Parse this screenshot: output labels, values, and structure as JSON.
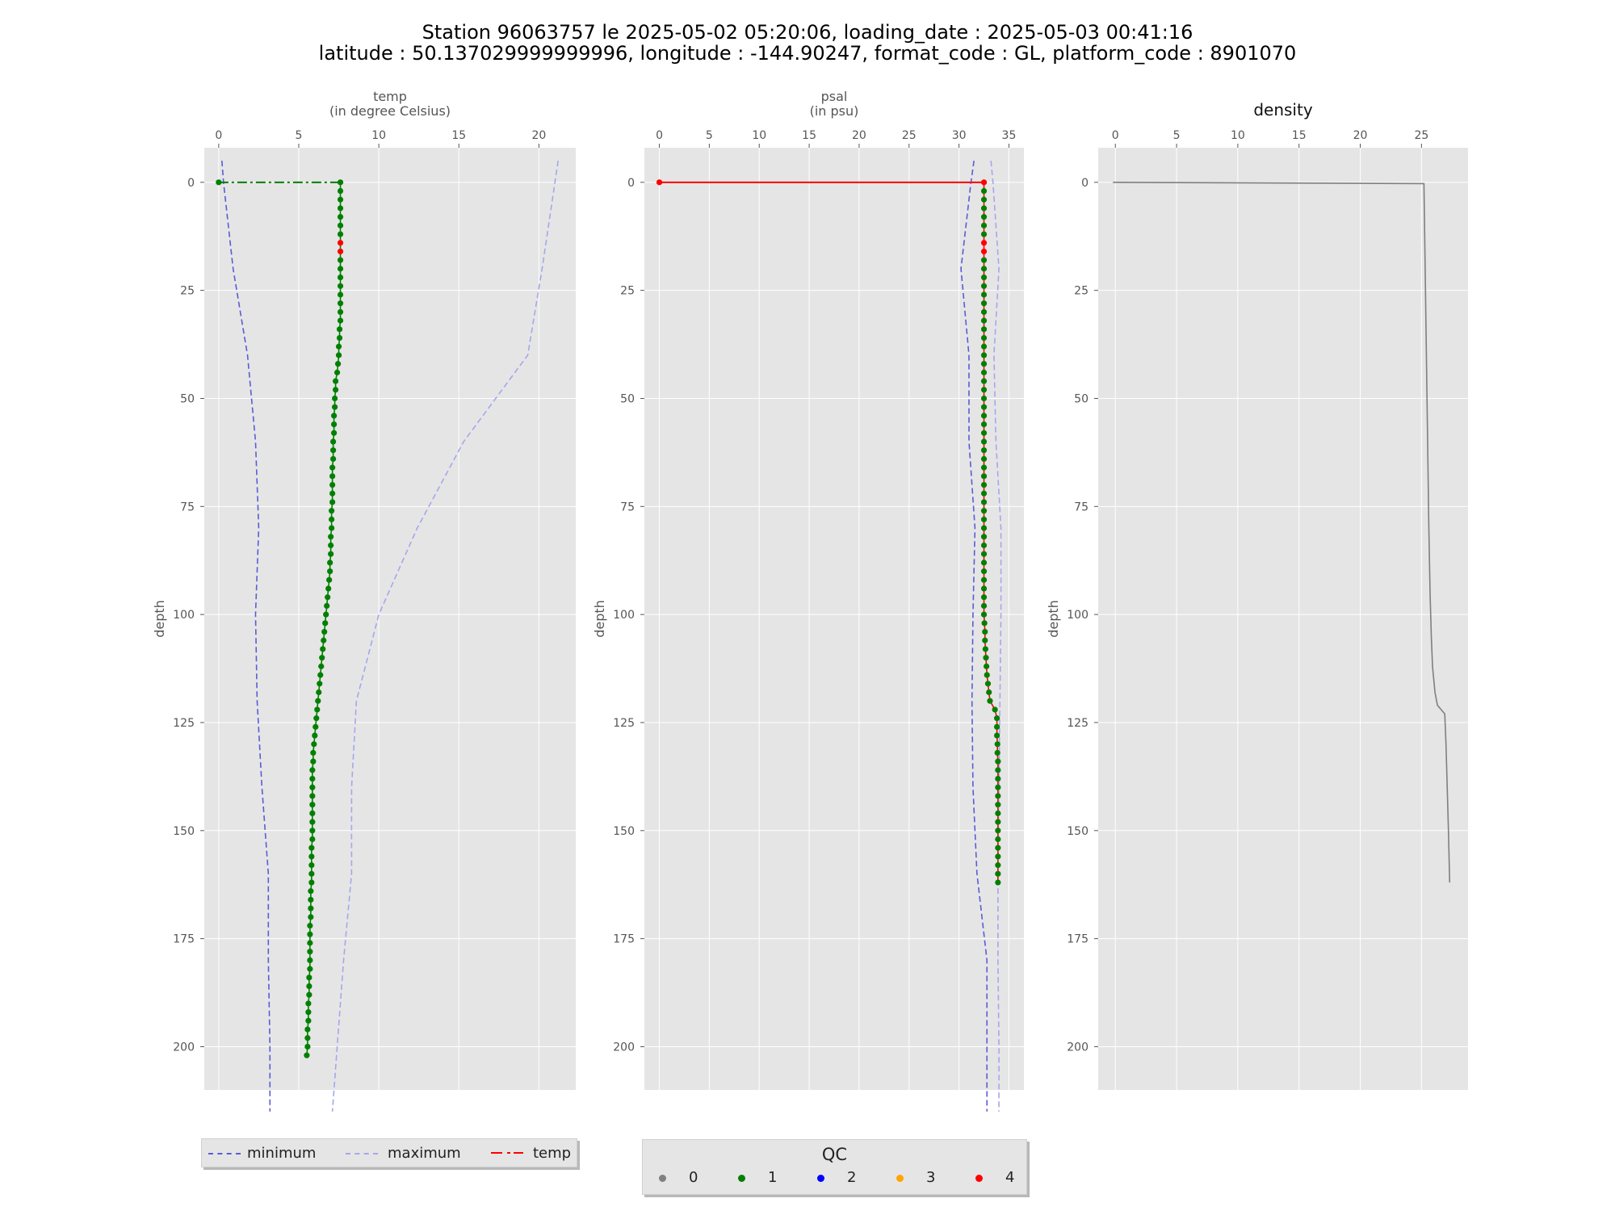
{
  "title": {
    "line1": "Station 96063757 le 2025-05-02 05:20:06, loading_date : 2025-05-03 00:41:16",
    "line2": "latitude : 50.137029999999996, longitude : -144.90247, format_code : GL, platform_code : 8901070"
  },
  "colors": {
    "background": "#e5e5e5",
    "grid": "#ffffff",
    "minimum": "#5b5bd6",
    "maximum": "#a6a6ee",
    "temp_line": "#008000",
    "psal_line": "#ff0000",
    "density_line": "#7f7f7f",
    "qc0": "#808080",
    "qc1": "#008000",
    "qc2": "#0000ff",
    "qc3": "#ffa500",
    "qc4": "#ff0000"
  },
  "legend": {
    "minimum": "minimum",
    "maximum": "maximum",
    "temp": "temp",
    "qc_title": "QC",
    "qc_labels": [
      "0",
      "1",
      "2",
      "3",
      "4"
    ]
  },
  "chart_data": [
    {
      "type": "line",
      "title": "temp\n(in degree Celsius)",
      "xlabel": "temp (in degree Celsius)",
      "ylabel": "depth",
      "xlim": [
        -0.9,
        22.3
      ],
      "ylim": [
        210,
        -8
      ],
      "xticks": [
        0,
        5,
        10,
        15,
        20
      ],
      "yticks": [
        0,
        25,
        50,
        75,
        100,
        125,
        150,
        175,
        200
      ],
      "x_axis_position": "top",
      "y_inverted": true,
      "grid": true,
      "series": [
        {
          "name": "minimum",
          "style": "dashed",
          "depth": [
            -5,
            0,
            20,
            40,
            60,
            80,
            100,
            120,
            140,
            160,
            180,
            200,
            215
          ],
          "x": [
            0.2,
            0.3,
            0.9,
            1.8,
            2.3,
            2.5,
            2.3,
            2.4,
            2.7,
            3.1,
            3.1,
            3.2,
            3.2
          ]
        },
        {
          "name": "maximum",
          "style": "dashed",
          "depth": [
            -5,
            0,
            20,
            40,
            60,
            80,
            100,
            120,
            140,
            160,
            180,
            200,
            215
          ],
          "x": [
            21.2,
            21.0,
            20.2,
            19.3,
            15.3,
            12.4,
            10.0,
            8.6,
            8.3,
            8.3,
            7.8,
            7.4,
            7.1
          ]
        },
        {
          "name": "temp",
          "style": "dashdot",
          "depth": [
            0,
            2,
            4,
            6,
            8,
            10,
            12,
            14,
            16,
            18,
            20,
            22,
            24,
            26,
            28,
            30,
            32,
            34,
            36,
            38,
            40,
            42,
            44,
            46,
            48,
            50,
            52,
            54,
            56,
            58,
            60,
            62,
            64,
            66,
            68,
            70,
            72,
            74,
            76,
            78,
            80,
            82,
            84,
            86,
            88,
            90,
            92,
            94,
            96,
            98,
            100,
            102,
            104,
            106,
            108,
            110,
            112,
            114,
            116,
            118,
            120,
            122,
            124,
            126,
            128,
            130,
            132,
            134,
            136,
            138,
            140,
            142,
            144,
            146,
            148,
            150,
            152,
            154,
            156,
            158,
            160,
            162,
            164,
            166,
            168,
            170,
            172,
            174,
            176,
            178,
            180,
            182,
            184,
            186,
            188,
            190,
            192,
            194,
            196,
            198,
            200,
            202
          ],
          "x": [
            7.6,
            7.6,
            7.6,
            7.6,
            7.6,
            7.6,
            7.6,
            7.6,
            7.6,
            7.6,
            7.6,
            7.6,
            7.6,
            7.6,
            7.6,
            7.6,
            7.6,
            7.55,
            7.55,
            7.5,
            7.5,
            7.45,
            7.4,
            7.3,
            7.3,
            7.25,
            7.25,
            7.2,
            7.2,
            7.2,
            7.15,
            7.15,
            7.15,
            7.1,
            7.1,
            7.1,
            7.1,
            7.1,
            7.05,
            7.05,
            7.05,
            7.0,
            7.0,
            7.0,
            6.95,
            6.95,
            6.9,
            6.85,
            6.8,
            6.75,
            6.7,
            6.65,
            6.6,
            6.55,
            6.5,
            6.45,
            6.4,
            6.35,
            6.3,
            6.25,
            6.2,
            6.15,
            6.1,
            6.05,
            6.0,
            5.95,
            5.9,
            5.9,
            5.85,
            5.85,
            5.85,
            5.85,
            5.85,
            5.85,
            5.85,
            5.85,
            5.85,
            5.8,
            5.8,
            5.8,
            5.8,
            5.8,
            5.75,
            5.75,
            5.75,
            5.75,
            5.7,
            5.7,
            5.7,
            5.7,
            5.7,
            5.7,
            5.65,
            5.65,
            5.65,
            5.6,
            5.6,
            5.6,
            5.55,
            5.55,
            5.55,
            5.5
          ],
          "surface_point": {
            "depth": 0,
            "x": 0.0,
            "qc": 1
          },
          "qc": {
            "default": 1,
            "4": [
              14,
              16
            ]
          }
        }
      ]
    },
    {
      "type": "line",
      "title": "psal\n(in psu)",
      "xlabel": "psal (in psu)",
      "ylabel": "depth",
      "xlim": [
        -1.5,
        36.5
      ],
      "ylim": [
        210,
        -8
      ],
      "xticks": [
        0,
        5,
        10,
        15,
        20,
        25,
        30,
        35
      ],
      "yticks": [
        0,
        25,
        50,
        75,
        100,
        125,
        150,
        175,
        200
      ],
      "x_axis_position": "top",
      "y_inverted": true,
      "grid": true,
      "series": [
        {
          "name": "minimum",
          "style": "dashed",
          "depth": [
            -5,
            0,
            20,
            40,
            60,
            80,
            100,
            120,
            140,
            160,
            180,
            200,
            215
          ],
          "x": [
            31.5,
            31.2,
            30.2,
            31.0,
            31.0,
            31.6,
            31.4,
            31.3,
            31.4,
            31.8,
            32.8,
            32.8,
            32.8
          ]
        },
        {
          "name": "maximum",
          "style": "dashed",
          "depth": [
            -5,
            0,
            20,
            40,
            60,
            80,
            100,
            120,
            140,
            160,
            180,
            200,
            215
          ],
          "x": [
            33.2,
            33.4,
            34.0,
            33.5,
            33.7,
            34.2,
            34.2,
            34.1,
            34.0,
            33.9,
            33.9,
            34.0,
            34.0
          ]
        },
        {
          "name": "psal",
          "style": "solid",
          "depth": [
            0,
            2,
            4,
            6,
            8,
            10,
            12,
            14,
            16,
            18,
            20,
            22,
            24,
            26,
            28,
            30,
            32,
            34,
            36,
            38,
            40,
            42,
            44,
            46,
            48,
            50,
            52,
            54,
            56,
            58,
            60,
            62,
            64,
            66,
            68,
            70,
            72,
            74,
            76,
            78,
            80,
            82,
            84,
            86,
            88,
            90,
            92,
            94,
            96,
            98,
            100,
            102,
            104,
            106,
            108,
            110,
            112,
            114,
            116,
            118,
            120,
            122,
            124,
            126,
            128,
            130,
            132,
            134,
            136,
            138,
            140,
            142,
            144,
            146,
            148,
            150,
            152,
            154,
            156,
            158,
            160,
            162
          ],
          "x": [
            32.5,
            32.5,
            32.5,
            32.5,
            32.5,
            32.5,
            32.5,
            32.5,
            32.5,
            32.5,
            32.5,
            32.5,
            32.5,
            32.5,
            32.5,
            32.5,
            32.5,
            32.5,
            32.5,
            32.5,
            32.5,
            32.5,
            32.5,
            32.5,
            32.5,
            32.5,
            32.5,
            32.5,
            32.5,
            32.5,
            32.5,
            32.5,
            32.5,
            32.5,
            32.5,
            32.5,
            32.5,
            32.5,
            32.5,
            32.5,
            32.5,
            32.5,
            32.5,
            32.5,
            32.5,
            32.5,
            32.5,
            32.5,
            32.5,
            32.5,
            32.5,
            32.55,
            32.6,
            32.6,
            32.65,
            32.7,
            32.75,
            32.8,
            32.9,
            33.0,
            33.1,
            33.6,
            33.8,
            33.8,
            33.8,
            33.85,
            33.85,
            33.9,
            33.9,
            33.9,
            33.9,
            33.9,
            33.9,
            33.9,
            33.9,
            33.9,
            33.9,
            33.9,
            33.9,
            33.9,
            33.9,
            33.9
          ],
          "surface_point": {
            "depth": 0,
            "x": 0.0,
            "qc": 4
          },
          "qc": {
            "default": 1,
            "4": [
              0,
              14,
              16
            ]
          }
        }
      ]
    },
    {
      "type": "line",
      "title": "density",
      "ylabel": "depth",
      "xlim": [
        -1.4,
        28.8
      ],
      "ylim": [
        210,
        -8
      ],
      "xticks": [
        0,
        5,
        10,
        15,
        20,
        25
      ],
      "yticks": [
        0,
        25,
        50,
        75,
        100,
        125,
        150,
        175,
        200
      ],
      "x_axis_position": "top",
      "y_inverted": true,
      "grid": true,
      "series": [
        {
          "name": "density",
          "style": "solid",
          "depth": [
            0,
            0.3,
            20,
            40,
            60,
            80,
            95,
            105,
            112,
            118,
            121,
            123,
            130,
            140,
            150,
            162
          ],
          "x": [
            -0.2,
            25.2,
            25.3,
            25.4,
            25.5,
            25.6,
            25.7,
            25.8,
            25.9,
            26.1,
            26.3,
            26.9,
            27.0,
            27.1,
            27.2,
            27.3
          ]
        }
      ]
    }
  ]
}
